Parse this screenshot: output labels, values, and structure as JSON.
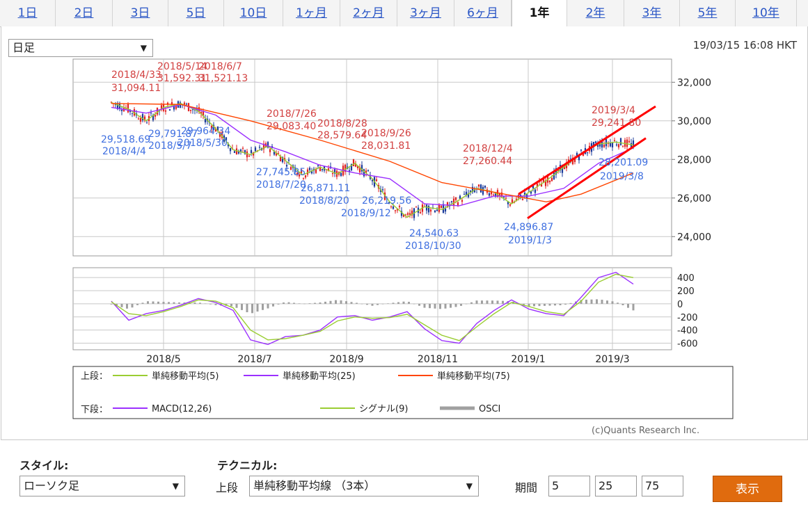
{
  "tabs": [
    "1日",
    "2日",
    "3日",
    "5日",
    "10日",
    "1ヶ月",
    "2ヶ月",
    "3ヶ月",
    "6ヶ月",
    "1年",
    "2年",
    "3年",
    "5年",
    "10年"
  ],
  "active_tab": "1年",
  "interval_select": "日足",
  "timestamp": "19/03/15 16:08 HKT",
  "credit": "(c)Quants Research Inc.",
  "colors": {
    "up": "#e02020",
    "down": "#1a3a9a",
    "ma5": "#9acd32",
    "ma25": "#9b30ff",
    "ma75": "#ff4500",
    "macd": "#9b30ff",
    "signal": "#9acd32",
    "osci": "#a0a0a0",
    "trend": "#ff0000",
    "accent": "#e06b0e"
  },
  "chart_data": [
    {
      "type": "line",
      "subtitle": "上段",
      "x_ticks": [
        "2018/5",
        "2018/7",
        "2018/9",
        "2018/11",
        "2019/1",
        "2019/3"
      ],
      "y_ticks": [
        "32,000",
        "30,000",
        "28,000",
        "26,000",
        "24,000"
      ],
      "ylim": [
        23000,
        33200
      ],
      "series": [
        {
          "name": "単純移動平均(5)",
          "points": [
            [
              0,
              30950
            ],
            [
              10,
              30600
            ],
            [
              20,
              30000
            ],
            [
              30,
              30700
            ],
            [
              40,
              30900
            ],
            [
              50,
              30500
            ],
            [
              60,
              29600
            ],
            [
              70,
              28500
            ],
            [
              80,
              28250
            ],
            [
              90,
              28700
            ],
            [
              100,
              27950
            ],
            [
              110,
              27200
            ],
            [
              120,
              27600
            ],
            [
              130,
              27250
            ],
            [
              140,
              27800
            ],
            [
              150,
              27000
            ],
            [
              160,
              25800
            ],
            [
              170,
              25000
            ],
            [
              180,
              25550
            ],
            [
              190,
              25400
            ],
            [
              200,
              25900
            ],
            [
              210,
              26500
            ],
            [
              220,
              26300
            ],
            [
              230,
              25700
            ],
            [
              240,
              26300
            ],
            [
              250,
              26900
            ],
            [
              260,
              27600
            ],
            [
              270,
              28300
            ],
            [
              280,
              28800
            ],
            [
              290,
              28900
            ],
            [
              300,
              28750
            ]
          ]
        },
        {
          "name": "単純移動平均(25)",
          "points": [
            [
              0,
              30700
            ],
            [
              20,
              30400
            ],
            [
              40,
              30850
            ],
            [
              60,
              30300
            ],
            [
              80,
              29000
            ],
            [
              100,
              28400
            ],
            [
              120,
              27700
            ],
            [
              140,
              27300
            ],
            [
              160,
              27000
            ],
            [
              180,
              25700
            ],
            [
              200,
              25600
            ],
            [
              220,
              26100
            ],
            [
              240,
              26100
            ],
            [
              260,
              26500
            ],
            [
              280,
              27800
            ],
            [
              300,
              28600
            ]
          ]
        },
        {
          "name": "単純移動平均(75)",
          "points": [
            [
              0,
              30900
            ],
            [
              40,
              30850
            ],
            [
              80,
              30000
            ],
            [
              120,
              29000
            ],
            [
              160,
              27900
            ],
            [
              190,
              26800
            ],
            [
              220,
              26300
            ],
            [
              250,
              25800
            ],
            [
              270,
              26200
            ],
            [
              300,
              27300
            ]
          ]
        }
      ],
      "annotations": [
        {
          "text": "2018/4/33",
          "kind": "high"
        },
        {
          "text": "31,094.11",
          "kind": "high"
        },
        {
          "text": "2018/5/14",
          "kind": "high"
        },
        {
          "text": "31,592.31",
          "kind": "high"
        },
        {
          "text": "2018/6/7",
          "kind": "high"
        },
        {
          "text": "31,521.13",
          "kind": "high"
        },
        {
          "text": "2018/7/26",
          "kind": "high"
        },
        {
          "text": "29,083.40",
          "kind": "high"
        },
        {
          "text": "2018/8/28",
          "kind": "high"
        },
        {
          "text": "28,579.64",
          "kind": "high"
        },
        {
          "text": "2018/9/26",
          "kind": "high"
        },
        {
          "text": "28,031.81",
          "kind": "high"
        },
        {
          "text": "2018/12/4",
          "kind": "high"
        },
        {
          "text": "27,260.44",
          "kind": "high"
        },
        {
          "text": "2019/3/4",
          "kind": "high"
        },
        {
          "text": "29,241.80",
          "kind": "high"
        },
        {
          "text": "29,518.69",
          "kind": "low"
        },
        {
          "text": "2018/4/4",
          "kind": "low"
        },
        {
          "text": "29,791.87",
          "kind": "low"
        },
        {
          "text": "2018/5/7",
          "kind": "low"
        },
        {
          "text": "29,964.34",
          "kind": "low"
        },
        {
          "text": "2018/5/30",
          "kind": "low"
        },
        {
          "text": "27,745.85",
          "kind": "low"
        },
        {
          "text": "2018/7/20",
          "kind": "low"
        },
        {
          "text": "26,871.11",
          "kind": "low"
        },
        {
          "text": "2018/8/20",
          "kind": "low"
        },
        {
          "text": "26,219.56",
          "kind": "low"
        },
        {
          "text": "2018/9/12",
          "kind": "low"
        },
        {
          "text": "24,540.63",
          "kind": "low"
        },
        {
          "text": "2018/10/30",
          "kind": "low"
        },
        {
          "text": "24,896.87",
          "kind": "low"
        },
        {
          "text": "2019/1/3",
          "kind": "low"
        },
        {
          "text": "28,201.09",
          "kind": "low"
        },
        {
          "text": "2019/3/8",
          "kind": "low"
        }
      ]
    },
    {
      "type": "line",
      "subtitle": "下段",
      "y_ticks": [
        "400",
        "200",
        "0",
        "-200",
        "-400",
        "-600"
      ],
      "ylim": [
        -700,
        550
      ],
      "series": [
        {
          "name": "MACD(12,26)",
          "points": [
            [
              0,
              40
            ],
            [
              10,
              -250
            ],
            [
              20,
              -150
            ],
            [
              30,
              -100
            ],
            [
              40,
              -20
            ],
            [
              50,
              80
            ],
            [
              60,
              20
            ],
            [
              70,
              -100
            ],
            [
              80,
              -550
            ],
            [
              90,
              -620
            ],
            [
              100,
              -500
            ],
            [
              110,
              -480
            ],
            [
              120,
              -400
            ],
            [
              130,
              -200
            ],
            [
              140,
              -180
            ],
            [
              150,
              -250
            ],
            [
              160,
              -200
            ],
            [
              170,
              -120
            ],
            [
              180,
              -380
            ],
            [
              190,
              -560
            ],
            [
              200,
              -600
            ],
            [
              210,
              -300
            ],
            [
              220,
              -100
            ],
            [
              230,
              60
            ],
            [
              240,
              -80
            ],
            [
              250,
              -150
            ],
            [
              260,
              -180
            ],
            [
              270,
              100
            ],
            [
              280,
              400
            ],
            [
              290,
              480
            ],
            [
              300,
              300
            ]
          ]
        },
        {
          "name": "シグナル(9)",
          "points": [
            [
              0,
              30
            ],
            [
              10,
              -150
            ],
            [
              20,
              -180
            ],
            [
              30,
              -120
            ],
            [
              40,
              -40
            ],
            [
              50,
              60
            ],
            [
              60,
              40
            ],
            [
              70,
              -60
            ],
            [
              80,
              -400
            ],
            [
              90,
              -550
            ],
            [
              100,
              -530
            ],
            [
              110,
              -480
            ],
            [
              120,
              -420
            ],
            [
              130,
              -260
            ],
            [
              140,
              -200
            ],
            [
              150,
              -220
            ],
            [
              160,
              -210
            ],
            [
              170,
              -160
            ],
            [
              180,
              -320
            ],
            [
              190,
              -480
            ],
            [
              200,
              -560
            ],
            [
              210,
              -350
            ],
            [
              220,
              -150
            ],
            [
              230,
              20
            ],
            [
              240,
              -40
            ],
            [
              250,
              -120
            ],
            [
              260,
              -160
            ],
            [
              270,
              40
            ],
            [
              280,
              330
            ],
            [
              290,
              450
            ],
            [
              300,
              400
            ]
          ]
        },
        {
          "name": "OSCI",
          "points": [
            [
              0,
              -10
            ],
            [
              10,
              -80
            ],
            [
              20,
              40
            ],
            [
              30,
              30
            ],
            [
              40,
              20
            ],
            [
              50,
              20
            ],
            [
              60,
              -20
            ],
            [
              70,
              -40
            ],
            [
              80,
              -150
            ],
            [
              90,
              -70
            ],
            [
              100,
              30
            ],
            [
              110,
              0
            ],
            [
              120,
              20
            ],
            [
              130,
              60
            ],
            [
              140,
              20
            ],
            [
              150,
              -30
            ],
            [
              160,
              10
            ],
            [
              170,
              40
            ],
            [
              180,
              -60
            ],
            [
              190,
              -80
            ],
            [
              200,
              -40
            ],
            [
              210,
              50
            ],
            [
              220,
              50
            ],
            [
              230,
              40
            ],
            [
              240,
              -40
            ],
            [
              250,
              -30
            ],
            [
              260,
              -20
            ],
            [
              270,
              60
            ],
            [
              280,
              70
            ],
            [
              290,
              30
            ],
            [
              300,
              -100
            ]
          ]
        }
      ]
    }
  ],
  "legend": {
    "top_label": "上段：",
    "bottom_label": "下段：",
    "items_top": [
      "単純移動平均(5)",
      "単純移動平均(25)",
      "単純移動平均(75)"
    ],
    "items_bottom": [
      "MACD(12,26)",
      "シグナル(9)",
      "OSCI"
    ]
  },
  "form": {
    "style_label": "スタイル:",
    "style_value": "ローソク足",
    "technical_label": "テクニカル:",
    "upper_label": "上段",
    "technical_value": "単純移動平均線 （3本）",
    "period_label": "期間",
    "period_values": [
      "5",
      "25",
      "75"
    ],
    "submit_label": "表示"
  }
}
